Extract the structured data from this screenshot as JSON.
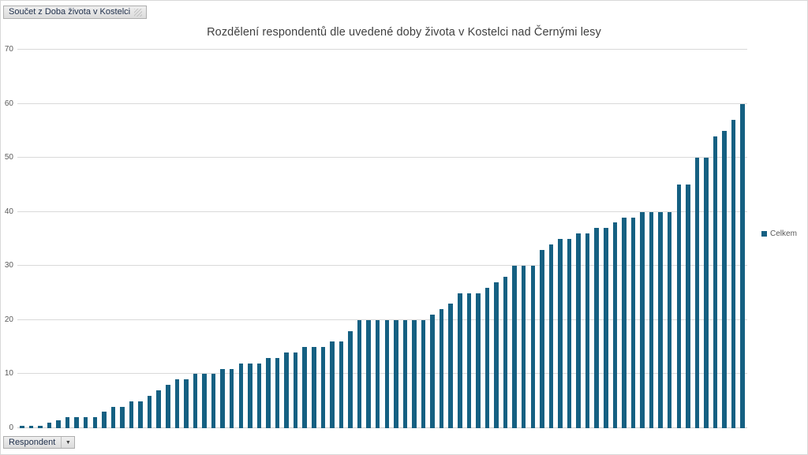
{
  "field_buttons": {
    "value_button": "Součet z Doba života v Kostelci",
    "axis_button": "Respondent"
  },
  "icons": {
    "dropdown_arrow": "▼"
  },
  "chart_data": {
    "type": "bar",
    "title": "Rozdělení respondentů dle uvedené doby života v Kostelci nad Černými lesy",
    "xlabel": "",
    "ylabel": "",
    "x_axis_labels_visible": false,
    "ylim": [
      0,
      70
    ],
    "yticks": [
      0,
      10,
      20,
      30,
      40,
      50,
      60,
      70
    ],
    "grid": true,
    "legend_position": "right",
    "legend": [
      "Celkem"
    ],
    "series": [
      {
        "name": "Celkem",
        "values": [
          0.5,
          0.5,
          0.5,
          1,
          1.5,
          2,
          2,
          2,
          2,
          3,
          4,
          4,
          5,
          5,
          6,
          7,
          8,
          9,
          9,
          10,
          10,
          10,
          11,
          11,
          12,
          12,
          12,
          13,
          13,
          14,
          14,
          15,
          15,
          15,
          16,
          16,
          18,
          20,
          20,
          20,
          20,
          20,
          20,
          20,
          20,
          21,
          22,
          23,
          25,
          25,
          25,
          26,
          27,
          28,
          30,
          30,
          30,
          33,
          34,
          35,
          35,
          36,
          36,
          37,
          37,
          38,
          39,
          39,
          40,
          40,
          40,
          40,
          45,
          45,
          50,
          50,
          54,
          55,
          57,
          60
        ]
      }
    ],
    "colors": {
      "bar": "#156082",
      "gridline": "#d9d9d9",
      "title_text": "#404040",
      "axis_text": "#595959"
    }
  }
}
